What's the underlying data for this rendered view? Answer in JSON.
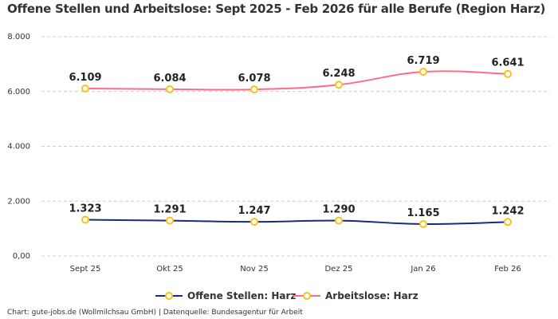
{
  "chart_data": {
    "type": "line",
    "title": "Offene Stellen und Arbeitslose: Sept 2025 - Feb 2026 für alle Berufe (Region Harz)",
    "categories": [
      "Sept 25",
      "Okt 25",
      "Nov 25",
      "Dez 25",
      "Jan 26",
      "Feb 26"
    ],
    "series": [
      {
        "name": "Offene Stellen: Harz",
        "values": [
          1323,
          1291,
          1247,
          1290,
          1165,
          1242
        ],
        "labels": [
          "1.323",
          "1.291",
          "1.247",
          "1.290",
          "1.165",
          "1.242"
        ],
        "color": "#1a2a80"
      },
      {
        "name": "Arbeitslose: Harz",
        "values": [
          6109,
          6084,
          6078,
          6248,
          6719,
          6641
        ],
        "labels": [
          "6.109",
          "6.084",
          "6.078",
          "6.248",
          "6.719",
          "6.641"
        ],
        "color": "#ff6b88"
      }
    ],
    "marker_color": "#f7c21a",
    "ylim": [
      0,
      8000
    ],
    "yticks": [
      0,
      2000,
      4000,
      6000,
      8000
    ],
    "ytick_labels": [
      "0,00",
      "2.000",
      "4.000",
      "6.000",
      "8.000"
    ],
    "grid": true,
    "legend": "bottom",
    "xlabel": "",
    "ylabel": ""
  },
  "footer": "Chart: gute-jobs.de (Wollmilchsau GmbH) | Datenquelle: Bundesagentur für Arbeit"
}
